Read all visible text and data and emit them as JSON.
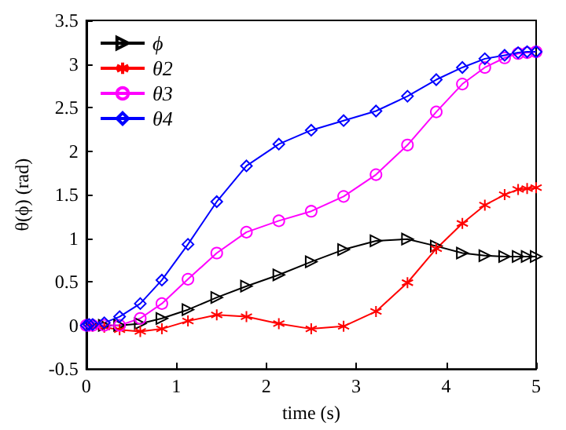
{
  "chart_data": {
    "type": "line",
    "xlabel": "time (s)",
    "ylabel": "θ(ϕ) (rad)",
    "x": [
      0,
      0.03,
      0.07,
      0.2,
      0.37,
      0.6,
      0.84,
      1.13,
      1.45,
      1.78,
      2.14,
      2.5,
      2.86,
      3.22,
      3.57,
      3.89,
      4.18,
      4.43,
      4.65,
      4.8,
      4.9,
      5
    ],
    "series": [
      {
        "name": "ϕ",
        "color": "#000000",
        "marker": "triangle",
        "values": [
          null,
          null,
          0,
          0,
          0,
          0.02,
          0.08,
          0.18,
          0.32,
          0.45,
          0.58,
          0.73,
          0.87,
          0.97,
          0.99,
          0.91,
          0.83,
          0.8,
          0.79,
          0.79,
          0.79,
          0.79
        ]
      },
      {
        "name": "θ2",
        "color": "#ff0000",
        "marker": "cross",
        "values": [
          null,
          null,
          -0.01,
          -0.02,
          -0.05,
          -0.07,
          -0.04,
          0.05,
          0.12,
          0.1,
          0.02,
          -0.04,
          -0.01,
          0.16,
          0.49,
          0.88,
          1.17,
          1.38,
          1.5,
          1.56,
          1.57,
          1.58
        ]
      },
      {
        "name": "θ3",
        "color": "#ff00ff",
        "marker": "circle",
        "values": [
          0,
          0,
          0,
          0,
          0,
          0.08,
          0.25,
          0.53,
          0.83,
          1.07,
          1.2,
          1.31,
          1.48,
          1.73,
          2.07,
          2.45,
          2.77,
          2.96,
          3.07,
          3.12,
          3.13,
          3.14
        ]
      },
      {
        "name": "θ4",
        "color": "#0000ff",
        "marker": "diamond",
        "values": [
          0,
          0.01,
          0.01,
          0.03,
          0.1,
          0.25,
          0.52,
          0.93,
          1.42,
          1.83,
          2.08,
          2.24,
          2.35,
          2.46,
          2.63,
          2.82,
          2.96,
          3.06,
          3.1,
          3.13,
          3.14,
          3.14
        ]
      }
    ],
    "xlim": [
      0,
      5
    ],
    "xticks": [
      0,
      1,
      2,
      3,
      4,
      5
    ],
    "ylim": [
      -0.5,
      3.5
    ],
    "yticks": [
      -0.5,
      0,
      0.5,
      1,
      1.5,
      2,
      2.5,
      3,
      3.5
    ],
    "grid": false,
    "legend": "top left",
    "line_style": "solid"
  }
}
